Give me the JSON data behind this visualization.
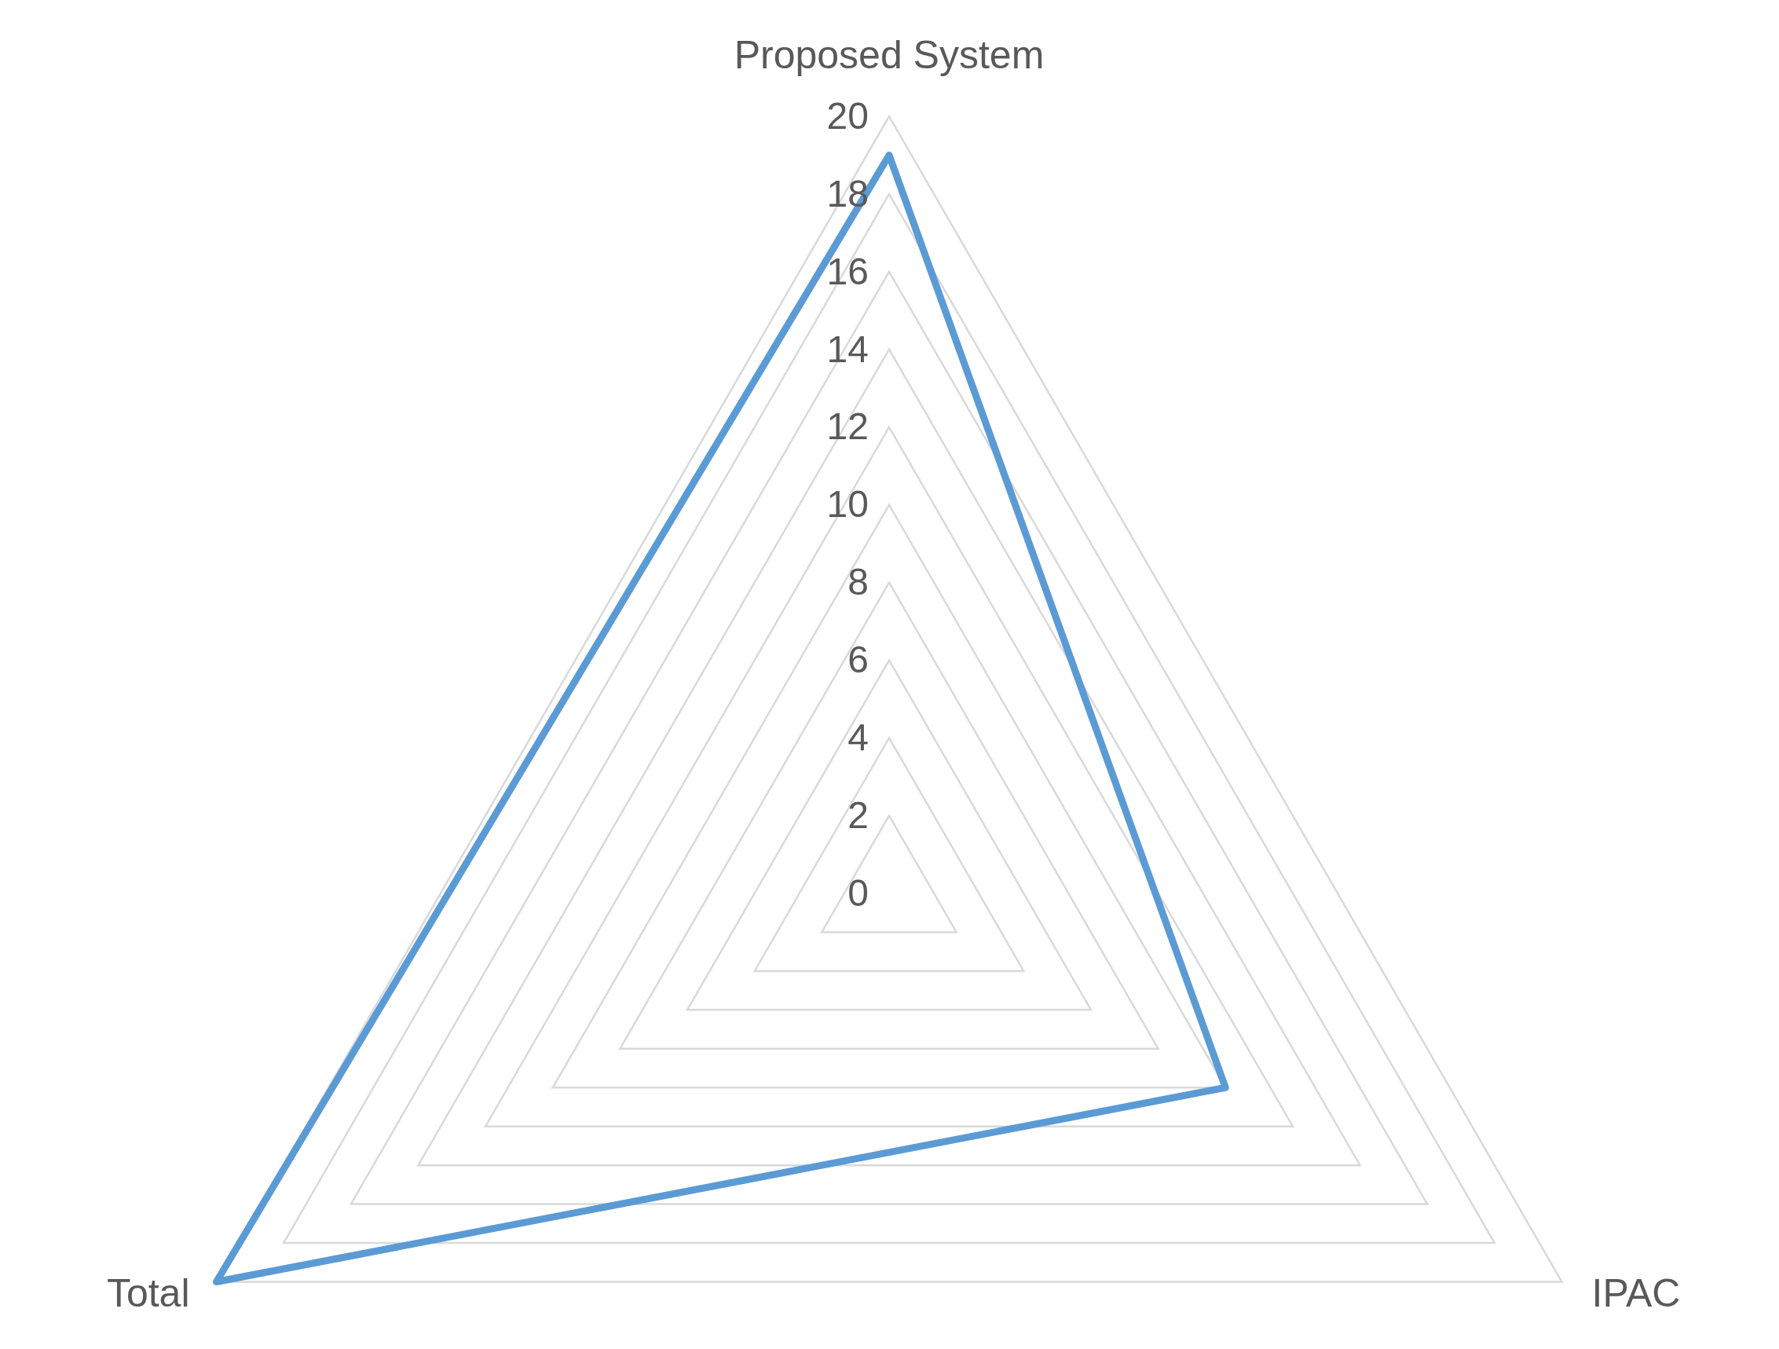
{
  "chart_data": {
    "type": "radar",
    "categories": [
      "Proposed System",
      "IPAC",
      "Total"
    ],
    "series": [
      {
        "color": "#5b9bd5",
        "values": [
          19,
          10,
          20
        ]
      }
    ],
    "ylim": [
      0,
      20
    ],
    "yticks": [
      0,
      2,
      4,
      6,
      8,
      10,
      12,
      14,
      16,
      18,
      20
    ],
    "grid": true
  }
}
